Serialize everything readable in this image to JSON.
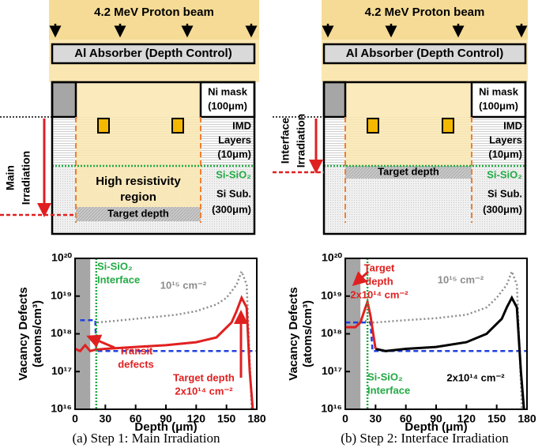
{
  "panels": [
    {
      "beam": "4.2 MeV Proton beam",
      "absorber": "Al Absorber (Depth Control)",
      "ni_mask": [
        "Ni mask",
        "(100μm)"
      ],
      "imd": [
        "IMD",
        "Layers",
        "(10μm)"
      ],
      "interface": "Si-SiO₂",
      "substrate": [
        "Si Sub.",
        "(300μm)"
      ],
      "irradiation": [
        "Main",
        "Irradiation"
      ],
      "region": [
        "High resistivity",
        "region"
      ],
      "target": "Target depth",
      "caption": "(a) Step 1: Main Irradiation"
    },
    {
      "beam": "4.2 MeV Proton beam",
      "absorber": "Al Absorber (Depth Control)",
      "ni_mask": [
        "Ni mask",
        "(100μm)"
      ],
      "imd": [
        "IMD",
        "Layers",
        "(10μm)"
      ],
      "interface": "Si-SiO₂",
      "substrate": [
        "Si Sub.",
        "(300μm)"
      ],
      "irradiation": [
        "Interface",
        "Irradiation"
      ],
      "target": "Target depth",
      "caption": "(b) Step 2: Interface Irradiation"
    }
  ],
  "chart_data": [
    {
      "type": "line",
      "xlabel": "Depth (μm)",
      "ylabel": [
        "Vacancy Defects",
        "(atoms/cm³)"
      ],
      "xlim": [
        0,
        180
      ],
      "xticks": [
        0,
        30,
        60,
        90,
        120,
        150,
        180
      ],
      "ylim": [
        1e+16,
        1e+20
      ],
      "log_y": true,
      "yticks": [
        {
          "value": 1e+16,
          "label": "10¹⁶"
        },
        {
          "value": 1e+17,
          "label": "10¹⁷"
        },
        {
          "value": 1e+18,
          "label": "10¹⁸"
        },
        {
          "value": 1e+19,
          "label": "10¹⁹"
        },
        {
          "value": 1e+20,
          "label": "10²⁰"
        }
      ],
      "shaded_x": [
        0,
        15
      ],
      "interface_x": 21,
      "annotations": [
        {
          "lines": [
            "Si-SiO₂",
            "Interface"
          ],
          "color": "#22aa44"
        },
        {
          "lines": [
            "Transit",
            "defects"
          ],
          "color": "#e02020"
        },
        {
          "lines": [
            "Target depth",
            "2x10¹⁴ cm⁻²"
          ],
          "color": "#e02020"
        }
      ],
      "series": [
        {
          "name": "10¹⁵ cm⁻²",
          "color": "#8c8c8c",
          "style": "dotted",
          "x": [
            22,
            40,
            60,
            80,
            100,
            120,
            140,
            150,
            160,
            165,
            170,
            175
          ],
          "values": [
            2e+18,
            2.2e+18,
            2.5e+18,
            2.8e+18,
            3.2e+18,
            4e+18,
            6e+18,
            9e+18,
            2e+19,
            4.5e+19,
            2e+19,
            1e+16
          ]
        },
        {
          "color": "#2040e0",
          "style": "dashed",
          "x": [
            5,
            20,
            21,
            180
          ],
          "values": [
            2.3e+18,
            2.3e+18,
            3.5e+17,
            3.5e+17
          ]
        },
        {
          "color": "#e02020",
          "style": "solid",
          "x": [
            0,
            5,
            10,
            15,
            20,
            30,
            60,
            90,
            120,
            140,
            155,
            160,
            165,
            170,
            173,
            176
          ],
          "values": [
            4e+17,
            3.5e+17,
            5e+17,
            3.5e+17,
            3.8e+17,
            4e+17,
            4.5e+17,
            5e+17,
            6e+17,
            8e+17,
            2e+18,
            4e+18,
            9e+18,
            5e+18,
            1e+17,
            1e+16
          ]
        }
      ]
    },
    {
      "type": "line",
      "xlabel": "Depth (μm)",
      "ylabel": [
        "Vacancy Defects",
        "(atoms/cm³)"
      ],
      "xlim": [
        0,
        180
      ],
      "xticks": [
        0,
        30,
        60,
        90,
        120,
        150,
        180
      ],
      "ylim": [
        1e+16,
        1e+20
      ],
      "log_y": true,
      "yticks": [
        {
          "value": 1e+16,
          "label": "10¹⁶"
        },
        {
          "value": 1e+17,
          "label": "10¹⁷"
        },
        {
          "value": 1e+18,
          "label": "10¹⁸"
        },
        {
          "value": 1e+19,
          "label": "10¹⁹"
        },
        {
          "value": 1e+20,
          "label": "10²⁰"
        }
      ],
      "shaded_x": [
        0,
        15
      ],
      "interface_x": 22,
      "annotations": [
        {
          "lines": [
            "Target",
            "depth",
            "2x10¹⁴ cm⁻²"
          ],
          "color": "#e02020"
        },
        {
          "lines": [
            "Si-SiO₂",
            "Interface"
          ],
          "color": "#22aa44"
        }
      ],
      "series": [
        {
          "name": "10¹⁵ cm⁻²",
          "color": "#8c8c8c",
          "style": "dotted",
          "x": [
            0,
            10,
            20,
            25,
            30,
            60,
            90,
            120,
            140,
            150,
            160,
            165,
            170,
            175
          ],
          "values": [
            2e+18,
            2e+18,
            2.2e+18,
            2e+18,
            2e+18,
            2.3e+18,
            2.6e+18,
            3.2e+18,
            5e+18,
            9e+18,
            2e+19,
            4.5e+19,
            2e+19,
            1e+16
          ]
        },
        {
          "color": "#2040e0",
          "style": "dashed",
          "x": [
            0,
            25,
            27,
            180
          ],
          "values": [
            2e+18,
            2e+18,
            3.5e+17,
            3.5e+17
          ]
        },
        {
          "name": "2x10¹⁴ cm⁻²",
          "color": "#000000",
          "style": "solid",
          "x": [
            30,
            40,
            60,
            90,
            120,
            140,
            155,
            160,
            165,
            170,
            174,
            177
          ],
          "values": [
            4e+17,
            3.5e+17,
            4e+17,
            4.5e+17,
            6e+17,
            1e+18,
            2.5e+18,
            5e+18,
            9e+18,
            5e+18,
            1e+17,
            1e+16
          ]
        },
        {
          "color": "#e02020",
          "style": "solid",
          "x": [
            0,
            5,
            10,
            15,
            20,
            22,
            25,
            30
          ],
          "values": [
            1.5e+18,
            1.5e+18,
            1.5e+18,
            2e+18,
            5e+18,
            7e+18,
            3e+18,
            4e+17
          ]
        }
      ]
    }
  ]
}
